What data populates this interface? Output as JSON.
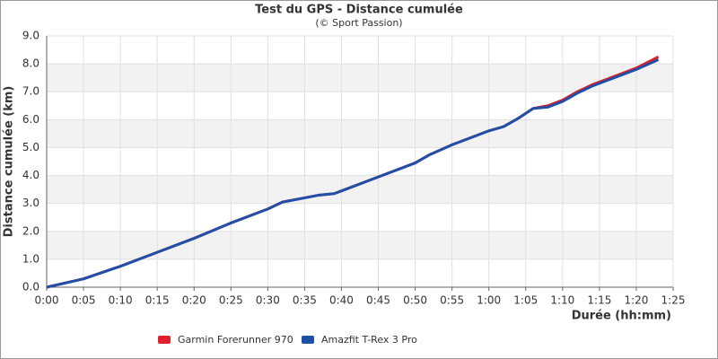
{
  "chart_data": {
    "type": "line",
    "title": "Test du GPS - Distance cumulée",
    "subtitle": "(© Sport Passion)",
    "x_label": "Durée (hh:mm)",
    "y_label": "Distance cumulée (km)",
    "x": [
      0,
      5,
      10,
      15,
      20,
      25,
      30,
      32,
      35,
      37,
      39,
      45,
      50,
      52,
      55,
      57,
      60,
      62,
      64,
      66,
      68,
      70,
      72,
      74,
      76,
      78,
      80,
      83
    ],
    "series": [
      {
        "name": "Garmin Forerunner 970",
        "color": "#e0202a",
        "values": [
          0,
          0.3,
          0.75,
          1.25,
          1.75,
          2.3,
          2.8,
          3.05,
          3.2,
          3.3,
          3.35,
          3.95,
          4.45,
          4.75,
          5.1,
          5.3,
          5.6,
          5.75,
          6.05,
          6.4,
          6.5,
          6.7,
          7.0,
          7.25,
          7.45,
          7.65,
          7.85,
          8.25
        ]
      },
      {
        "name": "Amazfit T-Rex 3 Pro",
        "color": "#1f4fa8",
        "values": [
          0,
          0.3,
          0.75,
          1.25,
          1.75,
          2.3,
          2.8,
          3.05,
          3.2,
          3.3,
          3.35,
          3.95,
          4.45,
          4.75,
          5.1,
          5.3,
          5.6,
          5.75,
          6.05,
          6.4,
          6.45,
          6.65,
          6.95,
          7.2,
          7.4,
          7.6,
          7.8,
          8.15
        ]
      }
    ],
    "xlim": [
      0,
      85
    ],
    "xticks": [
      {
        "value": 0,
        "label": "0:00"
      },
      {
        "value": 5,
        "label": "0:05"
      },
      {
        "value": 10,
        "label": "0:10"
      },
      {
        "value": 15,
        "label": "0:15"
      },
      {
        "value": 20,
        "label": "0:20"
      },
      {
        "value": 25,
        "label": "0:25"
      },
      {
        "value": 30,
        "label": "0:30"
      },
      {
        "value": 35,
        "label": "0:35"
      },
      {
        "value": 40,
        "label": "0:40"
      },
      {
        "value": 45,
        "label": "0:45"
      },
      {
        "value": 50,
        "label": "0:50"
      },
      {
        "value": 55,
        "label": "0:55"
      },
      {
        "value": 60,
        "label": "1:00"
      },
      {
        "value": 65,
        "label": "1:05"
      },
      {
        "value": 70,
        "label": "1:10"
      },
      {
        "value": 75,
        "label": "1:15"
      },
      {
        "value": 80,
        "label": "1:20"
      },
      {
        "value": 85,
        "label": "1:25"
      }
    ],
    "ylim": [
      0,
      9
    ],
    "yticks": [
      {
        "value": 0,
        "label": "0.0"
      },
      {
        "value": 1,
        "label": "1.0"
      },
      {
        "value": 2,
        "label": "2.0"
      },
      {
        "value": 3,
        "label": "3.0"
      },
      {
        "value": 4,
        "label": "4.0"
      },
      {
        "value": 5,
        "label": "5.0"
      },
      {
        "value": 6,
        "label": "6.0"
      },
      {
        "value": 7,
        "label": "7.0"
      },
      {
        "value": 8,
        "label": "8.0"
      },
      {
        "value": 9,
        "label": "9.0"
      }
    ],
    "grid": true,
    "legend": "bottom"
  }
}
